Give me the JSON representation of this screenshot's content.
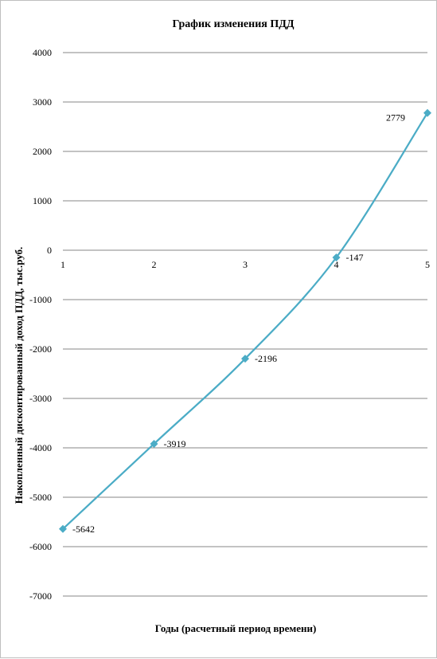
{
  "chart_data": {
    "type": "line",
    "title": "График изменения ПДД",
    "xlabel": "Годы (расчетный период времени)",
    "ylabel": "Накопленный дисконтированный доход ПДД, тыс.руб.",
    "x": [
      1,
      2,
      3,
      4,
      5
    ],
    "categories": [
      "1",
      "2",
      "3",
      "4",
      "5"
    ],
    "series": [
      {
        "values": [
          -5642,
          -3919,
          -2196,
          -147,
          2779
        ],
        "data_labels": [
          "-5642",
          "-3919",
          "-2196",
          "-147",
          "2779"
        ],
        "color": "#4bacc6",
        "marker": "diamond",
        "smooth": true
      }
    ],
    "yticks": [
      4000,
      3000,
      2000,
      1000,
      0,
      -1000,
      -2000,
      -3000,
      -4000,
      -5000,
      -6000,
      -7000
    ],
    "ylim": [
      -7000,
      4000
    ],
    "grid": true,
    "legend": "none"
  }
}
